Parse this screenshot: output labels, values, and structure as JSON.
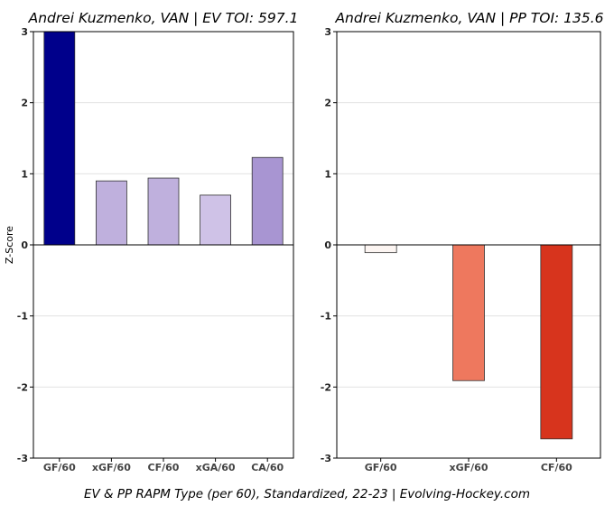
{
  "footer": "EV & PP RAPM Type (per 60), Standardized, 22-23    |    Evolving-Hockey.com",
  "chart_data": [
    {
      "type": "bar",
      "title": "Andrei Kuzmenko, VAN  |  EV TOI: 597.1",
      "ylabel": "Z-Score",
      "xlabel": "",
      "ylim": [
        -3,
        3
      ],
      "yticks": [
        -3,
        -2,
        -1,
        0,
        1,
        2,
        3
      ],
      "grid": true,
      "categories": [
        "GF/60",
        "xGF/60",
        "CF/60",
        "xGA/60",
        "CA/60"
      ],
      "values": [
        3.0,
        0.9,
        0.94,
        0.7,
        1.23
      ],
      "colors": [
        "#00008b",
        "#bfb0dd",
        "#bfb0dd",
        "#cfc2e7",
        "#a895d2"
      ]
    },
    {
      "type": "bar",
      "title": "Andrei Kuzmenko, VAN  |  PP TOI: 135.6",
      "ylabel": "",
      "xlabel": "",
      "ylim": [
        -3,
        3
      ],
      "yticks": [
        -3,
        -2,
        -1,
        0,
        1,
        2,
        3
      ],
      "grid": true,
      "categories": [
        "GF/60",
        "xGF/60",
        "CF/60"
      ],
      "values": [
        -0.11,
        -1.91,
        -2.73
      ],
      "colors": [
        "#fcf5f2",
        "#ee785e",
        "#d7341d"
      ]
    }
  ]
}
